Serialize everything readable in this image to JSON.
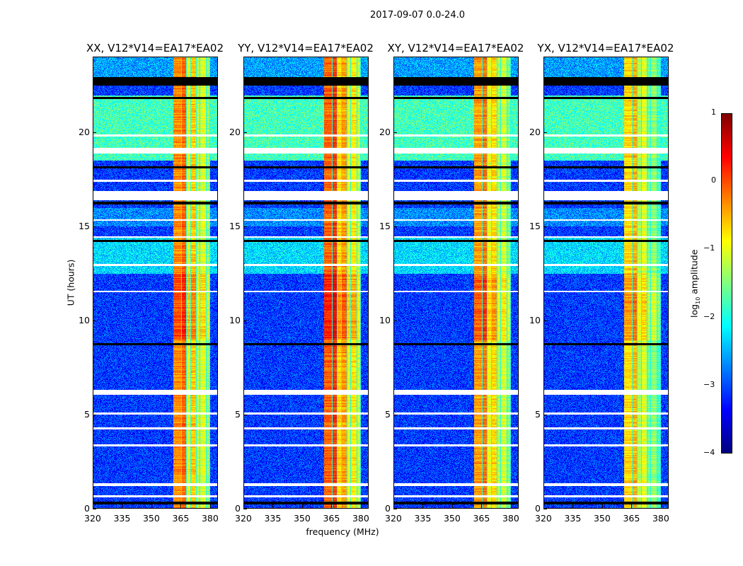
{
  "chart_data": {
    "type": "heatmap",
    "suptitle": "2017-09-07 0.0-24.0",
    "xlabel": "frequency (MHz)",
    "ylabel": "UT (hours)",
    "xlim": [
      320,
      384
    ],
    "ylim": [
      0,
      24
    ],
    "xticks": [
      320,
      335,
      350,
      365,
      380
    ],
    "yticks": [
      0,
      5,
      10,
      15,
      20
    ],
    "colorbar": {
      "label_prefix": "log",
      "label_sub": "10",
      "label_suffix": " amplitude",
      "range": [
        -4,
        1
      ],
      "ticks": [
        1,
        0,
        -1,
        -2,
        -3,
        -4
      ],
      "colormap": "jet"
    },
    "panels": [
      {
        "title": "XX, V12*V14=EA17*EA02",
        "band_level": 0.0
      },
      {
        "title": "YY, V12*V14=EA17*EA02",
        "band_level": 0.2
      },
      {
        "title": "XY, V12*V14=EA17*EA02",
        "band_level": -0.1
      },
      {
        "title": "YX, V12*V14=EA17*EA02",
        "band_level": -0.4
      }
    ],
    "band_freq_range_mhz": [
      361,
      380
    ],
    "subband_edges_mhz": [
      361,
      365.5,
      368,
      370,
      373,
      375,
      378,
      380
    ],
    "flagged_white_hours": [
      [
        18.9,
        19.2
      ],
      [
        16.4,
        16.9
      ],
      [
        6.05,
        6.3
      ],
      [
        15.3,
        15.4
      ],
      [
        11.5,
        11.6
      ],
      [
        5.0,
        5.1
      ],
      [
        4.2,
        4.3
      ],
      [
        3.3,
        3.4
      ],
      [
        1.2,
        1.35
      ],
      [
        0.6,
        0.7
      ],
      [
        12.9,
        13.0
      ],
      [
        14.4,
        14.5
      ],
      [
        19.8,
        19.9
      ],
      [
        17.4,
        17.5
      ]
    ],
    "flagged_black_hours": [
      [
        22.5,
        22.95
      ],
      [
        21.8,
        21.9
      ],
      [
        18.1,
        18.2
      ],
      [
        16.2,
        16.35
      ],
      [
        8.7,
        8.8
      ],
      [
        0.2,
        0.35
      ],
      [
        14.2,
        14.3
      ]
    ]
  }
}
